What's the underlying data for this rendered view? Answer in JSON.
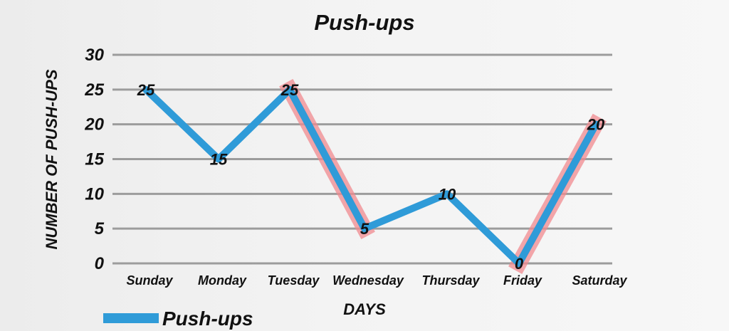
{
  "chart_data": {
    "type": "line",
    "title": "Push-ups",
    "xlabel": "DAYS",
    "ylabel": "NUMBER OF PUSH-UPS",
    "categories": [
      "Sunday",
      "Monday",
      "Tuesday",
      "Wednesday",
      "Thursday",
      "Friday",
      "Saturday"
    ],
    "series": [
      {
        "name": "Push-ups",
        "values": [
          25,
          15,
          25,
          5,
          10,
          0,
          20
        ],
        "color": "#2f9bd8"
      }
    ],
    "ylim": [
      0,
      30
    ],
    "yticks": [
      0,
      5,
      10,
      15,
      20,
      25,
      30
    ],
    "grid": true,
    "legend_position": "bottom-left",
    "highlighted_segments": [
      {
        "from": "Tuesday",
        "to": "Wednesday",
        "color": "#f08a8f"
      },
      {
        "from": "Friday",
        "to": "Saturday",
        "color": "#f08a8f"
      }
    ],
    "label_values": [
      25,
      15,
      25,
      5,
      10,
      0,
      20
    ]
  }
}
